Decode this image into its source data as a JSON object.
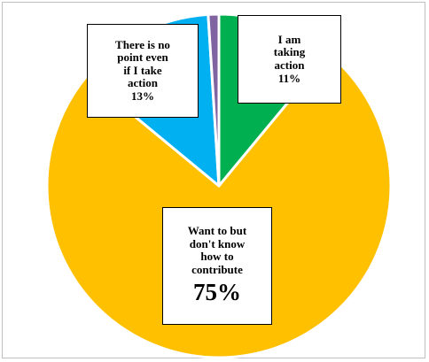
{
  "chart_data": {
    "type": "pie",
    "slices": [
      {
        "label": "I am taking action",
        "value": 11,
        "display": "11%",
        "color": "#00b050"
      },
      {
        "label": "Want to but don't know how to contribute",
        "value": 75,
        "display": "75%",
        "color": "#ffc000"
      },
      {
        "label": "There is no point even if I take action",
        "value": 13,
        "display": "13%",
        "color": "#00b0f0"
      },
      {
        "label": "",
        "value": 1,
        "display": "",
        "color": "#8064a2"
      }
    ],
    "labels_text": [
      "I am\ntaking\naction",
      "Want to but\ndon't know\nhow to\ncontribute",
      "There is no\npoint even\nif I take\naction"
    ]
  }
}
